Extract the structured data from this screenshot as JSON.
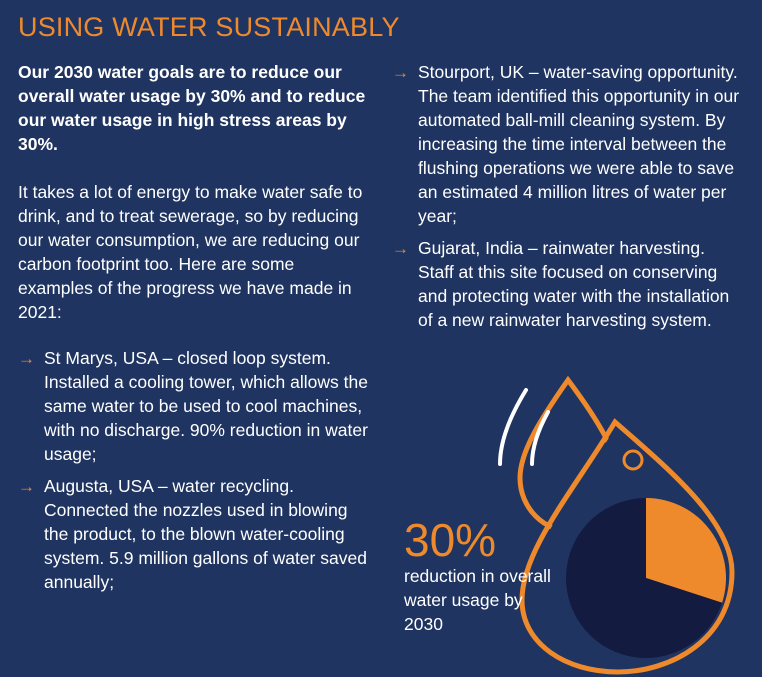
{
  "title": "USING WATER SUSTAINABLY",
  "intro": "Our 2030 water goals are to reduce our overall water usage by 30% and to reduce our water usage in high stress areas by 30%.",
  "body": "It takes a lot of energy to make water safe to drink, and to treat sewerage, so by reducing our water consumption, we are reducing our carbon footprint too. Here are some examples of the progress we have made in 2021:",
  "bullets_left": [
    {
      "text": "St Marys, USA – closed loop system. Installed a cooling tower, which allows the same water to be used to cool machines, with no discharge. 90% reduction in water usage;"
    },
    {
      "text": "Augusta, USA – water recycling. Connected the nozzles used in blowing the product, to the blown water-cooling system. 5.9 million gallons of water saved annually;"
    }
  ],
  "bullets_right": [
    {
      "text": "Stourport, UK – water-saving opportunity. The team identified this opportunity in our automated ball-mill cleaning system. By increasing the time interval between the flushing operations we were able to save an estimated 4 million litres of water per year;"
    },
    {
      "text": "Gujarat, India – rainwater harvesting. Staff at this site focused on conserving and protecting water with the installation of a new rainwater harvesting system."
    }
  ],
  "stat": {
    "value": "30%",
    "caption": "reduction in overall water usage by 2030"
  },
  "colors": {
    "background": "#1f3460",
    "accent": "#ef8a2c",
    "drop_fill": "#141b40"
  },
  "icons": {
    "bullet": "arrow-right-icon",
    "graphic": "water-drop-icon"
  },
  "chart_data": {
    "type": "pie",
    "values": [
      30,
      70
    ],
    "highlighted_fraction": 0.3
  }
}
